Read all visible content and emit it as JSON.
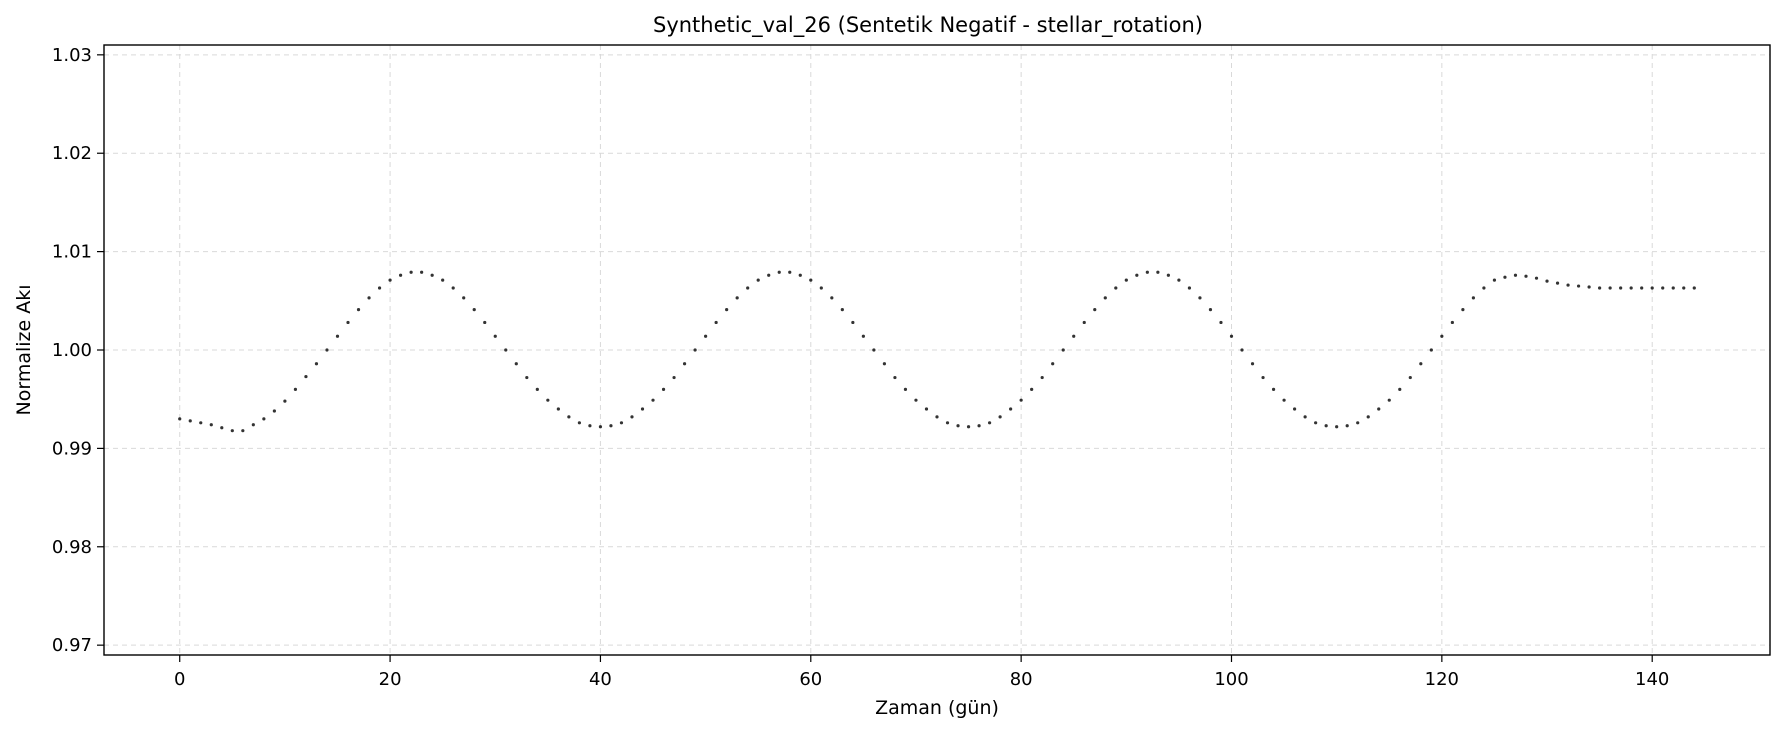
{
  "chart_data": {
    "type": "scatter",
    "title": "Synthetic_val_26 (Sentetik Negatif - stellar_rotation)",
    "xlabel": "Zaman (gün)",
    "ylabel": "Normalize Akı",
    "xlim": [
      -7.2,
      151.2
    ],
    "ylim": [
      0.969,
      1.031
    ],
    "xticks": [
      0,
      20,
      40,
      60,
      80,
      100,
      120,
      140
    ],
    "yticks": [
      0.97,
      0.98,
      0.99,
      1.0,
      1.01,
      1.02,
      1.03
    ],
    "ytick_labels": [
      "0.97",
      "0.98",
      "0.99",
      "1.00",
      "1.01",
      "1.02",
      "1.03"
    ],
    "grid": true,
    "marker_color": "#000000",
    "series": [
      {
        "x": [
          0,
          1,
          2,
          3,
          4,
          5,
          6,
          7,
          8,
          9,
          10,
          11,
          12,
          13,
          14,
          15,
          16,
          17,
          18,
          19,
          20,
          21,
          22,
          23,
          24,
          25,
          26,
          27,
          28,
          29,
          30,
          31,
          32,
          33,
          34,
          35,
          36,
          37,
          38,
          39,
          40,
          41,
          42,
          43,
          44,
          45,
          46,
          47,
          48,
          49,
          50,
          51,
          52,
          53,
          54,
          55,
          56,
          57,
          58,
          59,
          60,
          61,
          62,
          63,
          64,
          65,
          66,
          67,
          68,
          69,
          70,
          71,
          72,
          73,
          74,
          75,
          76,
          77,
          78,
          79,
          80,
          81,
          82,
          83,
          84,
          85,
          86,
          87,
          88,
          89,
          90,
          91,
          92,
          93,
          94,
          95,
          96,
          97,
          98,
          99,
          100,
          101,
          102,
          103,
          104,
          105,
          106,
          107,
          108,
          109,
          110,
          111,
          112,
          113,
          114,
          115,
          116,
          117,
          118,
          119,
          120,
          121,
          122,
          123,
          124,
          125,
          126,
          127,
          128,
          129,
          130,
          131,
          132,
          133,
          134,
          135,
          136,
          137,
          138,
          139,
          140,
          141,
          142,
          143,
          144
        ],
        "y": [
          0.993,
          0.9928,
          0.9926,
          0.9924,
          0.9921,
          0.9918,
          0.9918,
          0.9924,
          0.993,
          0.9938,
          0.9948,
          0.996,
          0.9973,
          0.9986,
          1.0,
          1.0014,
          1.0028,
          1.0041,
          1.0053,
          1.0063,
          1.0071,
          1.0076,
          1.0079,
          1.0079,
          1.0076,
          1.0071,
          1.0063,
          1.0053,
          1.0041,
          1.0028,
          1.0014,
          1.0,
          0.9986,
          0.9972,
          0.996,
          0.9949,
          0.994,
          0.9932,
          0.9926,
          0.9923,
          0.9922,
          0.9923,
          0.9926,
          0.9932,
          0.994,
          0.9949,
          0.996,
          0.9972,
          0.9986,
          1.0,
          1.0014,
          1.0028,
          1.0041,
          1.0053,
          1.0063,
          1.0071,
          1.0076,
          1.0079,
          1.0079,
          1.0076,
          1.0071,
          1.0063,
          1.0053,
          1.0041,
          1.0028,
          1.0014,
          1.0,
          0.9986,
          0.9972,
          0.996,
          0.9949,
          0.994,
          0.9932,
          0.9926,
          0.9923,
          0.9922,
          0.9923,
          0.9926,
          0.9932,
          0.994,
          0.9949,
          0.996,
          0.9972,
          0.9986,
          1.0,
          1.0014,
          1.0028,
          1.0041,
          1.0053,
          1.0063,
          1.0071,
          1.0076,
          1.0079,
          1.0079,
          1.0076,
          1.0071,
          1.0063,
          1.0053,
          1.0041,
          1.0028,
          1.0014,
          1.0,
          0.9986,
          0.9972,
          0.996,
          0.9949,
          0.994,
          0.9932,
          0.9926,
          0.9923,
          0.9922,
          0.9923,
          0.9926,
          0.9932,
          0.994,
          0.9949,
          0.996,
          0.9972,
          0.9986,
          1.0,
          1.0014,
          1.0028,
          1.0041,
          1.0053,
          1.0063,
          1.0071,
          1.0074,
          1.0076,
          1.0075,
          1.0073,
          1.007,
          1.0068,
          1.0066,
          1.0065,
          1.0064,
          1.0063,
          1.0063,
          1.0063,
          1.0063,
          1.0063,
          1.0063,
          1.0063,
          1.0063,
          1.0063,
          1.0063
        ]
      }
    ]
  }
}
